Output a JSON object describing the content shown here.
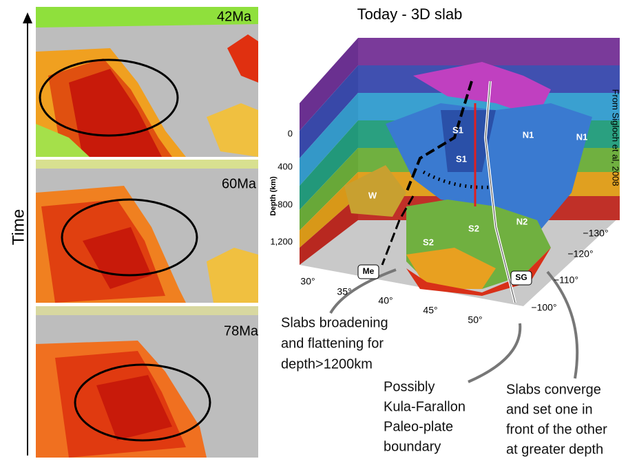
{
  "time_label": "Time",
  "maps": [
    {
      "age": "42Ma"
    },
    {
      "age": "60Ma"
    },
    {
      "age": "78Ma"
    }
  ],
  "slab": {
    "title": "Today - 3D slab",
    "credit": "From Sigloch et al, 2008",
    "depth_axis": {
      "label": "Depth (km)",
      "ticks": [
        "0",
        "400",
        "800",
        "1,200"
      ]
    },
    "lat_ticks": [
      "30°",
      "35°",
      "40°",
      "45°",
      "50°"
    ],
    "lon_ticks": [
      "−130°",
      "−120°",
      "−110°",
      "−100°"
    ],
    "slab_labels": [
      "S1",
      "S1",
      "N1",
      "N1",
      "W",
      "S2",
      "S2",
      "N2"
    ],
    "boxed_labels": [
      "Me",
      "SG"
    ]
  },
  "annotations": [
    {
      "lines": [
        "Slabs broadening",
        "and flattening for",
        "depth>1200km"
      ]
    },
    {
      "lines": [
        "Possibly",
        "Kula-Farallon",
        "Paleo-plate",
        "boundary"
      ]
    },
    {
      "lines": [
        "Slabs converge",
        "and set one in",
        "front of the other",
        "at greater depth"
      ]
    }
  ]
}
